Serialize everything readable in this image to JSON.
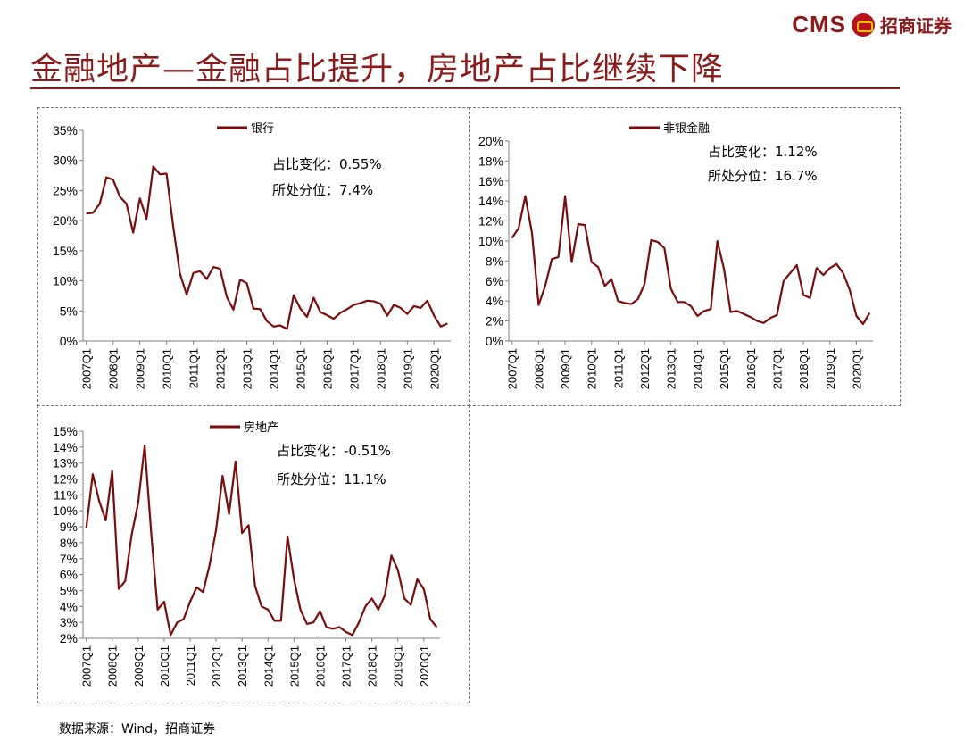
{
  "brand": {
    "logo_text": "CMS",
    "name": "招商证券"
  },
  "page_title": "金融地产—金融占比提升，房地产占比继续下降",
  "source_text": "数据来源：Wind，招商证券",
  "colors": {
    "accent": "#8b1a1a",
    "line": "#7a0c0c"
  },
  "chart_data": [
    {
      "type": "line",
      "legend": "银行",
      "annotations": [
        "占比变化：0.55%",
        "所处分位：7.4%"
      ],
      "ylim": [
        0,
        35
      ],
      "ystep": 5,
      "unit": "%",
      "x_ticks": [
        "2007Q1",
        "2008Q1",
        "2009Q1",
        "2010Q1",
        "2011Q1",
        "2012Q1",
        "2013Q1",
        "2014Q1",
        "2015Q1",
        "2016Q1",
        "2017Q1",
        "2018Q1",
        "2019Q1",
        "2020Q1"
      ],
      "series": [
        {
          "name": "银行",
          "values": [
            21.2,
            21.3,
            22.8,
            27.2,
            26.8,
            24.0,
            22.8,
            18.0,
            23.7,
            20.3,
            29.0,
            27.7,
            27.8,
            19.0,
            11.2,
            7.7,
            11.3,
            11.6,
            10.3,
            12.3,
            12.0,
            7.3,
            5.2,
            10.2,
            9.6,
            5.4,
            5.3,
            3.3,
            2.4,
            2.6,
            2.0,
            7.6,
            5.4,
            4.0,
            7.2,
            4.8,
            4.3,
            3.7,
            4.7,
            5.3,
            6.0,
            6.3,
            6.7,
            6.6,
            6.2,
            4.2,
            6.0,
            5.5,
            4.5,
            5.8,
            5.5,
            6.7,
            4.2,
            2.4,
            2.9
          ]
        }
      ]
    },
    {
      "type": "line",
      "legend": "非银金融",
      "annotations": [
        "占比变化：1.12%",
        "所处分位：16.7%"
      ],
      "ylim": [
        0,
        20
      ],
      "ystep": 2,
      "unit": "%",
      "x_ticks": [
        "2007Q1",
        "2008Q1",
        "2009Q1",
        "2010Q1",
        "2011Q1",
        "2012Q1",
        "2013Q1",
        "2014Q1",
        "2015Q1",
        "2016Q1",
        "2017Q1",
        "2018Q1",
        "2019Q1",
        "2020Q1"
      ],
      "series": [
        {
          "name": "非银金融",
          "values": [
            10.3,
            11.3,
            14.5,
            10.8,
            3.6,
            5.5,
            8.2,
            8.4,
            14.5,
            7.9,
            11.7,
            11.6,
            7.9,
            7.4,
            5.5,
            6.2,
            4.0,
            3.8,
            3.7,
            4.2,
            5.7,
            10.1,
            9.9,
            9.3,
            5.2,
            3.9,
            3.9,
            3.5,
            2.5,
            3.0,
            3.2,
            10.0,
            7.2,
            2.9,
            3.0,
            2.7,
            2.4,
            2.0,
            1.8,
            2.3,
            2.6,
            6.0,
            6.8,
            7.6,
            4.6,
            4.3,
            7.3,
            6.6,
            7.3,
            7.7,
            6.8,
            5.1,
            2.5,
            1.7,
            2.8
          ]
        }
      ]
    },
    {
      "type": "line",
      "legend": "房地产",
      "annotations": [
        "占比变化：-0.51%",
        "所处分位：11.1%"
      ],
      "ylim": [
        2,
        15
      ],
      "ystep": 1,
      "unit": "%",
      "x_ticks": [
        "2007Q1",
        "2008Q1",
        "2009Q1",
        "2010Q1",
        "2011Q1",
        "2012Q1",
        "2013Q1",
        "2014Q1",
        "2015Q1",
        "2016Q1",
        "2017Q1",
        "2018Q1",
        "2019Q1",
        "2020Q1"
      ],
      "series": [
        {
          "name": "房地产",
          "values": [
            8.9,
            12.3,
            10.6,
            9.4,
            12.5,
            5.1,
            5.6,
            8.5,
            10.5,
            14.1,
            8.6,
            3.8,
            4.3,
            2.2,
            3.0,
            3.2,
            4.3,
            5.2,
            4.9,
            6.6,
            8.8,
            12.2,
            9.8,
            13.1,
            8.6,
            9.1,
            5.3,
            4.0,
            3.8,
            3.1,
            3.1,
            8.4,
            5.7,
            3.8,
            2.9,
            3.0,
            3.7,
            2.7,
            2.6,
            2.7,
            2.4,
            2.2,
            3.0,
            4.0,
            4.5,
            3.8,
            4.7,
            7.2,
            6.3,
            4.5,
            4.1,
            5.7,
            5.1,
            3.2,
            2.7
          ]
        }
      ]
    }
  ]
}
